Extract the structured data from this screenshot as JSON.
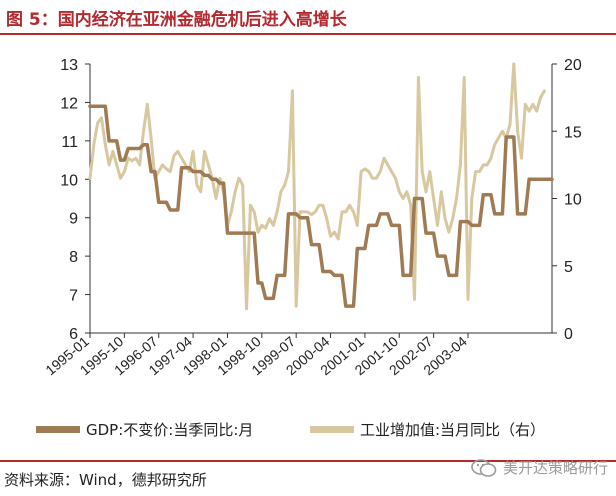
{
  "header": {
    "title": "图 5：国内经济在亚洲金融危机后进入高增长"
  },
  "footer": {
    "source": "资料来源：Wind，德邦研究所",
    "watermark": "美开达策略研行"
  },
  "colors": {
    "title": "#b4282e",
    "gdp": "#a07a52",
    "ip": "#d8c8a0",
    "axis": "#333333"
  },
  "icons": {
    "watermark": "wechat-icon"
  },
  "chart_data": {
    "type": "line",
    "title": "国内经济在亚洲金融危机后进入高增长",
    "ylim_left": [
      6,
      13
    ],
    "yticks_left": [
      6,
      7,
      8,
      9,
      10,
      11,
      12,
      13
    ],
    "ylim_right": [
      0,
      20
    ],
    "yticks_right": [
      0,
      5,
      10,
      15,
      20
    ],
    "xticks": [
      "1995-01",
      "1995-10",
      "1996-07",
      "1997-04",
      "1998-01",
      "1998-10",
      "1999-07",
      "2000-04",
      "2001-01",
      "2001-10",
      "2002-07",
      "2003-04"
    ],
    "x_start": "1995-01",
    "legend_position": "bottom",
    "series": [
      {
        "name": "GDP:不变价:当季同比:月",
        "axis": "left",
        "values": [
          11.9,
          11.9,
          11.9,
          11.9,
          11.9,
          11.0,
          11.0,
          11.0,
          10.5,
          10.5,
          10.8,
          10.8,
          10.8,
          10.8,
          10.9,
          10.9,
          10.2,
          10.2,
          9.4,
          9.4,
          9.4,
          9.2,
          9.2,
          9.2,
          10.3,
          10.3,
          10.3,
          10.2,
          10.2,
          10.2,
          10.1,
          10.1,
          10.0,
          10.0,
          9.9,
          9.9,
          8.6,
          8.6,
          8.6,
          8.6,
          8.6,
          8.6,
          8.6,
          8.6,
          7.3,
          7.3,
          6.9,
          6.9,
          6.9,
          7.5,
          7.5,
          7.5,
          9.1,
          9.1,
          9.1,
          9.0,
          9.0,
          9.0,
          8.3,
          8.3,
          8.3,
          7.6,
          7.6,
          7.6,
          7.5,
          7.5,
          7.5,
          6.7,
          6.7,
          6.7,
          8.2,
          8.2,
          8.2,
          8.8,
          8.8,
          8.8,
          9.1,
          9.1,
          9.1,
          8.8,
          8.8,
          8.8,
          7.5,
          7.5,
          7.5,
          9.5,
          9.5,
          9.5,
          8.6,
          8.6,
          8.6,
          8.0,
          8.0,
          8.0,
          7.5,
          7.5,
          7.5,
          8.9,
          8.9,
          8.9,
          8.8,
          8.8,
          8.8,
          9.6,
          9.6,
          9.6,
          9.1,
          9.1,
          9.1,
          11.1,
          11.1,
          11.1,
          9.1,
          9.1,
          9.1,
          10.0,
          10.0,
          10.0,
          10.0,
          10.0,
          10.0,
          10.0
        ]
      },
      {
        "name": "工业增加值:当月同比（右）",
        "axis": "right",
        "values": [
          11.5,
          14.0,
          15.6,
          16.0,
          14.0,
          12.5,
          13.5,
          12.5,
          11.5,
          12.0,
          13.0,
          12.8,
          13.0,
          12.5,
          15.0,
          17.0,
          14.5,
          11.5,
          12.0,
          12.5,
          12.2,
          12.0,
          13.2,
          13.5,
          13.0,
          12.5,
          12.0,
          13.5,
          11.0,
          10.5,
          13.5,
          12.5,
          11.5,
          10.0,
          11.5,
          10.5,
          8.0,
          9.0,
          10.5,
          11.5,
          11.0,
          1.8,
          9.5,
          9.0,
          7.5,
          8.0,
          7.8,
          8.5,
          8.0,
          9.0,
          10.5,
          11.0,
          12.0,
          18.0,
          2.0,
          9.0,
          9.0,
          9.0,
          8.8,
          9.0,
          9.5,
          9.5,
          8.5,
          7.2,
          7.5,
          7.0,
          9.0,
          9.0,
          9.5,
          9.0,
          8.0,
          12.0,
          12.2,
          12.0,
          11.5,
          11.5,
          12.0,
          13.0,
          12.5,
          12.0,
          11.5,
          10.5,
          10.0,
          10.5,
          9.5,
          2.5,
          19.0,
          12.0,
          10.5,
          12.0,
          10.0,
          8.0,
          10.5,
          8.5,
          7.5,
          8.5,
          10.0,
          12.5,
          19.0,
          2.5,
          10.0,
          12.0,
          12.0,
          12.5,
          12.5,
          13.0,
          14.0,
          14.5,
          15.0,
          14.5,
          15.5,
          20.0,
          15.0,
          13.0,
          17.0,
          16.5,
          17.0,
          16.5,
          17.5,
          18.0
        ]
      }
    ]
  }
}
